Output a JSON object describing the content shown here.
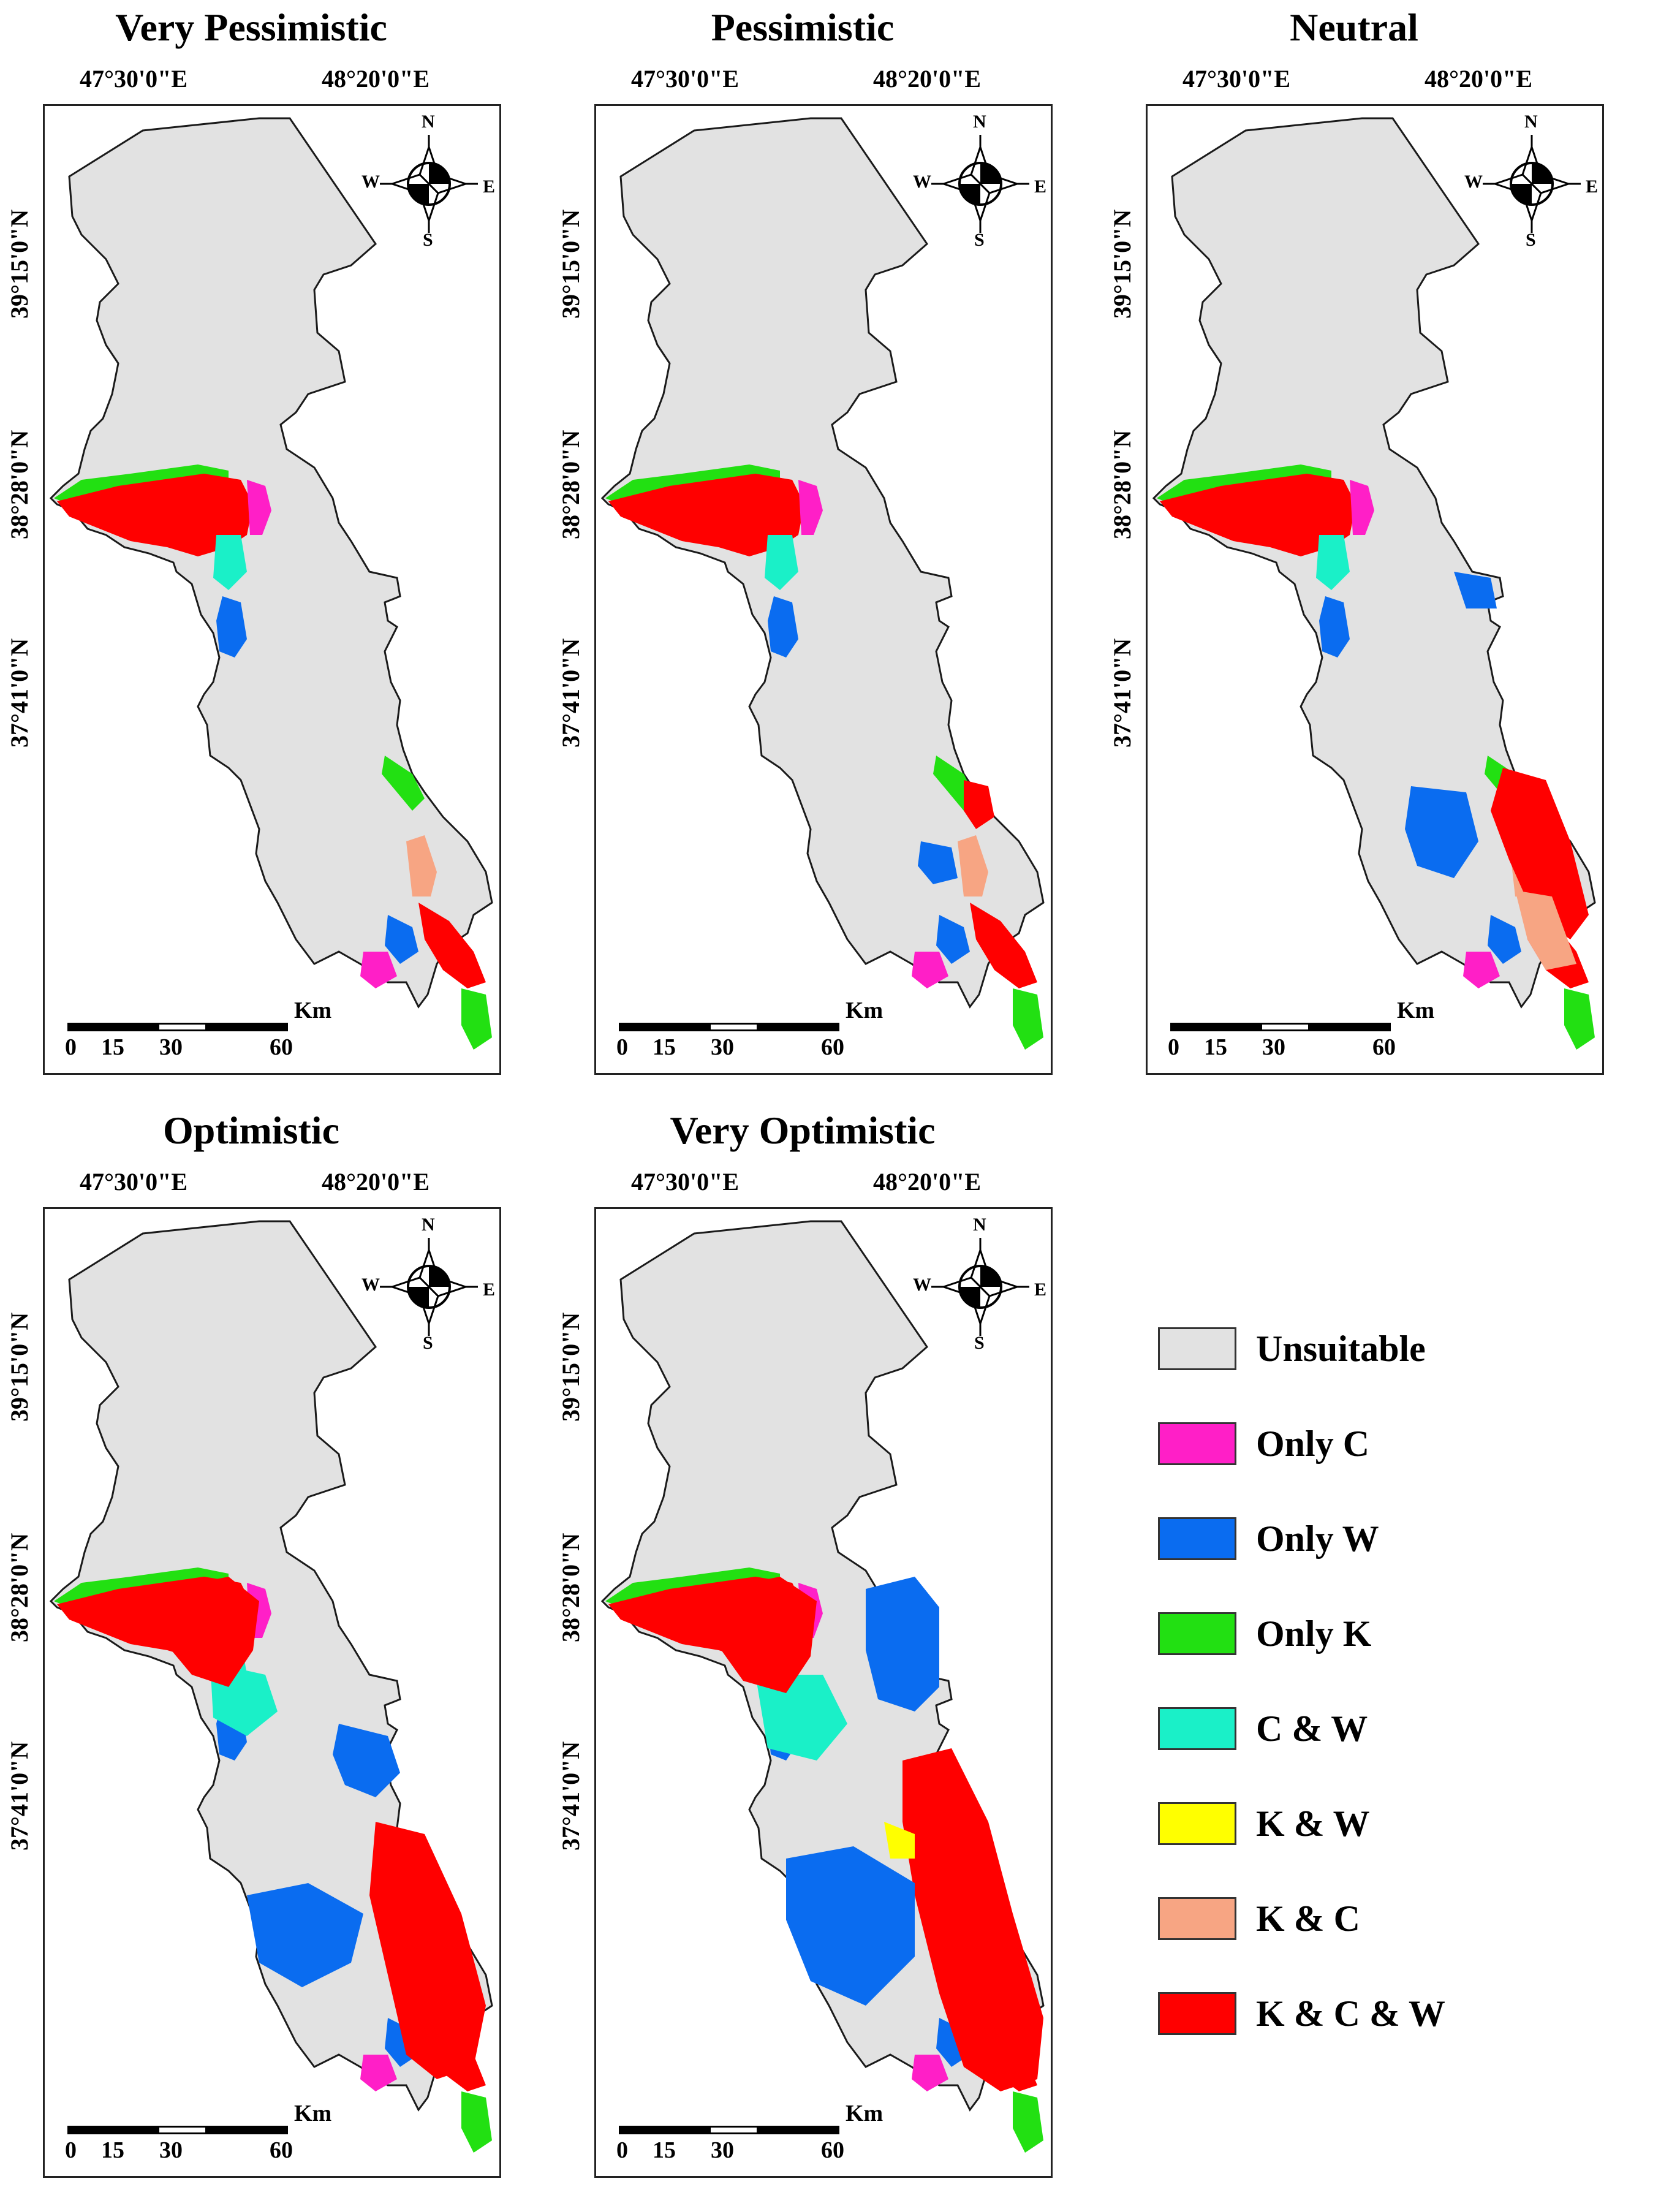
{
  "panels": [
    {
      "title": "Very Pessimistic",
      "lon_labels": [
        "47°30'0\"E",
        "48°20'0\"E"
      ],
      "lat_labels": [
        "39°15'0\"N",
        "38°28'0\"N",
        "37°41'0\"N"
      ]
    },
    {
      "title": "Pessimistic",
      "lon_labels": [
        "47°30'0\"E",
        "48°20'0\"E"
      ],
      "lat_labels": [
        "39°15'0\"N",
        "38°28'0\"N",
        "37°41'0\"N"
      ]
    },
    {
      "title": "Neutral",
      "lon_labels": [
        "47°30'0\"E",
        "48°20'0\"E"
      ],
      "lat_labels": [
        "39°15'0\"N",
        "38°28'0\"N",
        "37°41'0\"N"
      ]
    },
    {
      "title": "Optimistic",
      "lon_labels": [
        "47°30'0\"E",
        "48°20'0\"E"
      ],
      "lat_labels": [
        "39°15'0\"N",
        "38°28'0\"N",
        "37°41'0\"N"
      ]
    },
    {
      "title": "Very Optimistic",
      "lon_labels": [
        "47°30'0\"E",
        "48°20'0\"E"
      ],
      "lat_labels": [
        "39°15'0\"N",
        "38°28'0\"N",
        "37°41'0\"N"
      ]
    }
  ],
  "compass": {
    "n": "N",
    "s": "S",
    "e": "E",
    "w": "W"
  },
  "scale": {
    "unit": "Km",
    "ticks": [
      "0",
      "15",
      "30",
      "60"
    ]
  },
  "legend": [
    {
      "label": "Unsuitable",
      "color": "#e2e2e2"
    },
    {
      "label": "Only C",
      "color": "#ff1fc7"
    },
    {
      "label": "Only W",
      "color": "#0a6cf0"
    },
    {
      "label": "Only K",
      "color": "#22e012"
    },
    {
      "label": "C & W",
      "color": "#1af0c8"
    },
    {
      "label": "K & W",
      "color": "#ffff00"
    },
    {
      "label": "K & C",
      "color": "#f7a583"
    },
    {
      "label": "K & C & W",
      "color": "#ff0000"
    }
  ]
}
